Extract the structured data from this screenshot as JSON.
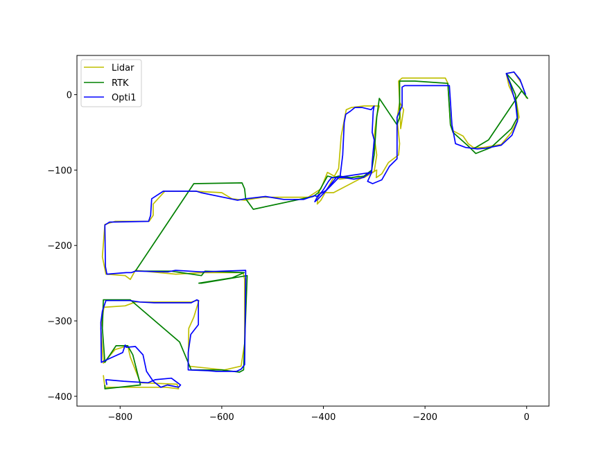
{
  "chart_data": {
    "type": "line",
    "title": "",
    "xlabel": "",
    "ylabel": "",
    "xlim": [
      -885,
      44
    ],
    "ylim": [
      -413,
      52
    ],
    "xticks": [
      -800,
      -600,
      -400,
      -200,
      0
    ],
    "yticks": [
      0,
      -100,
      -200,
      -300,
      -400
    ],
    "grid": false,
    "legend_position": "top-left",
    "series": [
      {
        "name": "Lidar",
        "color": "#bfbf00",
        "points": [
          [
            -833,
            -372
          ],
          [
            -830,
            -388
          ],
          [
            -710,
            -388
          ],
          [
            -685,
            -390
          ],
          [
            -688,
            -384
          ],
          [
            -760,
            -382
          ],
          [
            -780,
            -348
          ],
          [
            -785,
            -333
          ],
          [
            -810,
            -338
          ],
          [
            -833,
            -356
          ],
          [
            -838,
            -310
          ],
          [
            -832,
            -282
          ],
          [
            -790,
            -280
          ],
          [
            -770,
            -275
          ],
          [
            -660,
            -275
          ],
          [
            -650,
            -273
          ],
          [
            -645,
            -273
          ],
          [
            -655,
            -295
          ],
          [
            -665,
            -310
          ],
          [
            -666,
            -360
          ],
          [
            -595,
            -365
          ],
          [
            -562,
            -360
          ],
          [
            -555,
            -330
          ],
          [
            -555,
            -245
          ],
          [
            -558,
            -236
          ],
          [
            -635,
            -236
          ],
          [
            -690,
            -238
          ],
          [
            -770,
            -233
          ],
          [
            -780,
            -245
          ],
          [
            -790,
            -240
          ],
          [
            -828,
            -238
          ],
          [
            -835,
            -215
          ],
          [
            -830,
            -172
          ],
          [
            -810,
            -168
          ],
          [
            -743,
            -168
          ],
          [
            -735,
            -160
          ],
          [
            -735,
            -145
          ],
          [
            -712,
            -128
          ],
          [
            -655,
            -128
          ],
          [
            -600,
            -130
          ],
          [
            -580,
            -138
          ],
          [
            -555,
            -140
          ],
          [
            -520,
            -136
          ],
          [
            -470,
            -136
          ],
          [
            -430,
            -136
          ],
          [
            -405,
            -125
          ],
          [
            -392,
            -103
          ],
          [
            -368,
            -112
          ],
          [
            -345,
            -110
          ],
          [
            -330,
            -108
          ],
          [
            -320,
            -110
          ],
          [
            -300,
            -102
          ],
          [
            -295,
            -80
          ],
          [
            -300,
            -55
          ],
          [
            -295,
            -28
          ],
          [
            -290,
            -15
          ],
          [
            -320,
            -15
          ],
          [
            -345,
            -17
          ],
          [
            -355,
            -20
          ],
          [
            -365,
            -55
          ],
          [
            -370,
            -98
          ],
          [
            -405,
            -140
          ],
          [
            -412,
            -145
          ],
          [
            -410,
            -133
          ],
          [
            -408,
            -130
          ],
          [
            -380,
            -130
          ],
          [
            -295,
            -100
          ],
          [
            -296,
            -110
          ],
          [
            -285,
            -105
          ],
          [
            -272,
            -90
          ],
          [
            -252,
            -80
          ],
          [
            -250,
            -65
          ],
          [
            -255,
            -32
          ],
          [
            -250,
            -10
          ],
          [
            -242,
            -20
          ],
          [
            -248,
            -45
          ],
          [
            -250,
            -10
          ],
          [
            -252,
            18
          ],
          [
            -245,
            22
          ],
          [
            -160,
            22
          ],
          [
            -155,
            15
          ],
          [
            -150,
            -40
          ],
          [
            -145,
            -48
          ],
          [
            -125,
            -55
          ],
          [
            -115,
            -65
          ],
          [
            -105,
            -70
          ],
          [
            -85,
            -70
          ],
          [
            -50,
            -66
          ],
          [
            -30,
            -50
          ],
          [
            -15,
            -30
          ],
          [
            -20,
            -10
          ],
          [
            -35,
            12
          ],
          [
            -40,
            28
          ],
          [
            -25,
            30
          ],
          [
            -10,
            15
          ],
          [
            0,
            -5
          ]
        ]
      },
      {
        "name": "RTK",
        "color": "#008000",
        "points": [
          [
            -830,
            -385
          ],
          [
            -830,
            -390
          ],
          [
            -760,
            -385
          ],
          [
            -775,
            -345
          ],
          [
            -785,
            -333
          ],
          [
            -808,
            -333
          ],
          [
            -830,
            -355
          ],
          [
            -835,
            -310
          ],
          [
            -833,
            -272
          ],
          [
            -800,
            -272
          ],
          [
            -780,
            -272
          ],
          [
            -683,
            -328
          ],
          [
            -660,
            -365
          ],
          [
            -600,
            -365
          ],
          [
            -565,
            -368
          ],
          [
            -557,
            -365
          ],
          [
            -550,
            -240
          ],
          [
            -640,
            -250
          ],
          [
            -645,
            -250
          ],
          [
            -580,
            -243
          ],
          [
            -556,
            -236
          ],
          [
            -633,
            -234
          ],
          [
            -640,
            -240
          ],
          [
            -700,
            -234
          ],
          [
            -770,
            -234
          ],
          [
            -655,
            -118
          ],
          [
            -560,
            -117
          ],
          [
            -555,
            -125
          ],
          [
            -553,
            -138
          ],
          [
            -538,
            -152
          ],
          [
            -420,
            -135
          ],
          [
            -410,
            -130
          ],
          [
            -392,
            -108
          ],
          [
            -380,
            -110
          ],
          [
            -370,
            -108
          ],
          [
            -345,
            -110
          ],
          [
            -320,
            -108
          ],
          [
            -305,
            -100
          ],
          [
            -300,
            -80
          ],
          [
            -295,
            -30
          ],
          [
            -290,
            -5
          ],
          [
            -270,
            -25
          ],
          [
            -255,
            -40
          ],
          [
            -250,
            -30
          ],
          [
            -250,
            18
          ],
          [
            -220,
            18
          ],
          [
            -155,
            15
          ],
          [
            -150,
            -40
          ],
          [
            -145,
            -50
          ],
          [
            -115,
            -68
          ],
          [
            -100,
            -78
          ],
          [
            -70,
            -70
          ],
          [
            -30,
            -45
          ],
          [
            -18,
            -30
          ],
          [
            -22,
            0
          ],
          [
            -40,
            28
          ],
          [
            -15,
            10
          ],
          [
            2,
            -5
          ],
          [
            -10,
            5
          ],
          [
            -75,
            -60
          ],
          [
            -105,
            -72
          ]
        ]
      },
      {
        "name": "Opti1",
        "color": "#0000ff",
        "points": [
          [
            -826,
            -385
          ],
          [
            -828,
            -378
          ],
          [
            -793,
            -380
          ],
          [
            -745,
            -382
          ],
          [
            -731,
            -378
          ],
          [
            -699,
            -376
          ],
          [
            -681,
            -385
          ],
          [
            -685,
            -388
          ],
          [
            -707,
            -385
          ],
          [
            -720,
            -388
          ],
          [
            -735,
            -380
          ],
          [
            -748,
            -367
          ],
          [
            -755,
            -345
          ],
          [
            -770,
            -334
          ],
          [
            -788,
            -335
          ],
          [
            -790,
            -332
          ],
          [
            -795,
            -342
          ],
          [
            -821,
            -350
          ],
          [
            -837,
            -355
          ],
          [
            -838,
            -302
          ],
          [
            -835,
            -287
          ],
          [
            -828,
            -273
          ],
          [
            -781,
            -273
          ],
          [
            -761,
            -275
          ],
          [
            -733,
            -276
          ],
          [
            -725,
            -276
          ],
          [
            -660,
            -276
          ],
          [
            -649,
            -272
          ],
          [
            -646,
            -273
          ],
          [
            -646,
            -305
          ],
          [
            -661,
            -318
          ],
          [
            -666,
            -342
          ],
          [
            -666,
            -365
          ],
          [
            -627,
            -366
          ],
          [
            -611,
            -367
          ],
          [
            -571,
            -367
          ],
          [
            -562,
            -364
          ],
          [
            -555,
            -358
          ],
          [
            -553,
            -247
          ],
          [
            -553,
            -233
          ],
          [
            -640,
            -235
          ],
          [
            -691,
            -233
          ],
          [
            -706,
            -235
          ],
          [
            -770,
            -234
          ],
          [
            -778,
            -236
          ],
          [
            -788,
            -236
          ],
          [
            -826,
            -238
          ],
          [
            -829,
            -228
          ],
          [
            -830,
            -173
          ],
          [
            -821,
            -169
          ],
          [
            -744,
            -168
          ],
          [
            -740,
            -160
          ],
          [
            -738,
            -138
          ],
          [
            -715,
            -128
          ],
          [
            -650,
            -128
          ],
          [
            -641,
            -130
          ],
          [
            -590,
            -137
          ],
          [
            -569,
            -140
          ],
          [
            -553,
            -138
          ],
          [
            -514,
            -135
          ],
          [
            -478,
            -139
          ],
          [
            -439,
            -139
          ],
          [
            -418,
            -134
          ],
          [
            -410,
            -135
          ],
          [
            -399,
            -125
          ],
          [
            -390,
            -115
          ],
          [
            -384,
            -110
          ],
          [
            -360,
            -110
          ],
          [
            -340,
            -112
          ],
          [
            -322,
            -110
          ],
          [
            -305,
            -102
          ],
          [
            -304,
            -90
          ],
          [
            -300,
            -60
          ],
          [
            -304,
            -50
          ],
          [
            -302,
            -22
          ],
          [
            -300,
            -15
          ],
          [
            -306,
            -20
          ],
          [
            -324,
            -17
          ],
          [
            -338,
            -17
          ],
          [
            -347,
            -22
          ],
          [
            -356,
            -26
          ],
          [
            -359,
            -37
          ],
          [
            -362,
            -80
          ],
          [
            -367,
            -108
          ],
          [
            -410,
            -138
          ],
          [
            -417,
            -142
          ],
          [
            -410,
            -133
          ],
          [
            -395,
            -127
          ],
          [
            -375,
            -110
          ],
          [
            -305,
            -103
          ],
          [
            -313,
            -115
          ],
          [
            -303,
            -118
          ],
          [
            -285,
            -113
          ],
          [
            -270,
            -95
          ],
          [
            -255,
            -85
          ],
          [
            -255,
            -55
          ],
          [
            -255,
            -30
          ],
          [
            -245,
            -15
          ],
          [
            -245,
            10
          ],
          [
            -240,
            12
          ],
          [
            -168,
            12
          ],
          [
            -152,
            12
          ],
          [
            -147,
            -40
          ],
          [
            -140,
            -65
          ],
          [
            -120,
            -70
          ],
          [
            -97,
            -72
          ],
          [
            -80,
            -71
          ],
          [
            -50,
            -67
          ],
          [
            -29,
            -54
          ],
          [
            -18,
            -35
          ],
          [
            -22,
            -10
          ],
          [
            -32,
            13
          ],
          [
            -40,
            28
          ],
          [
            -25,
            30
          ],
          [
            -13,
            20
          ],
          [
            -2,
            0
          ]
        ]
      }
    ]
  }
}
